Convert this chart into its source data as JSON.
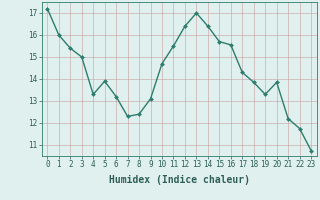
{
  "x": [
    0,
    1,
    2,
    3,
    4,
    5,
    6,
    7,
    8,
    9,
    10,
    11,
    12,
    13,
    14,
    15,
    16,
    17,
    18,
    19,
    20,
    21,
    22,
    23
  ],
  "y": [
    17.2,
    16.0,
    15.4,
    15.0,
    13.3,
    13.9,
    13.2,
    12.3,
    12.4,
    13.1,
    14.7,
    15.5,
    16.4,
    17.0,
    16.4,
    15.7,
    15.55,
    14.3,
    13.85,
    13.3,
    13.85,
    12.2,
    11.75,
    10.75
  ],
  "line_color": "#2e7d6e",
  "marker": "D",
  "marker_size": 2.0,
  "bg_color": "#dff0ee",
  "grid_color": "#c8a0a0",
  "xlabel": "Humidex (Indice chaleur)",
  "ylabel": "",
  "xlim": [
    -0.5,
    23.5
  ],
  "ylim": [
    10.5,
    17.5
  ],
  "yticks": [
    11,
    12,
    13,
    14,
    15,
    16,
    17
  ],
  "xticks": [
    0,
    1,
    2,
    3,
    4,
    5,
    6,
    7,
    8,
    9,
    10,
    11,
    12,
    13,
    14,
    15,
    16,
    17,
    18,
    19,
    20,
    21,
    22,
    23
  ],
  "tick_label_fontsize": 5.5,
  "xlabel_fontsize": 7.0,
  "line_width": 1.0,
  "axis_color": "#2e7d6e",
  "text_color": "#2e5f58"
}
